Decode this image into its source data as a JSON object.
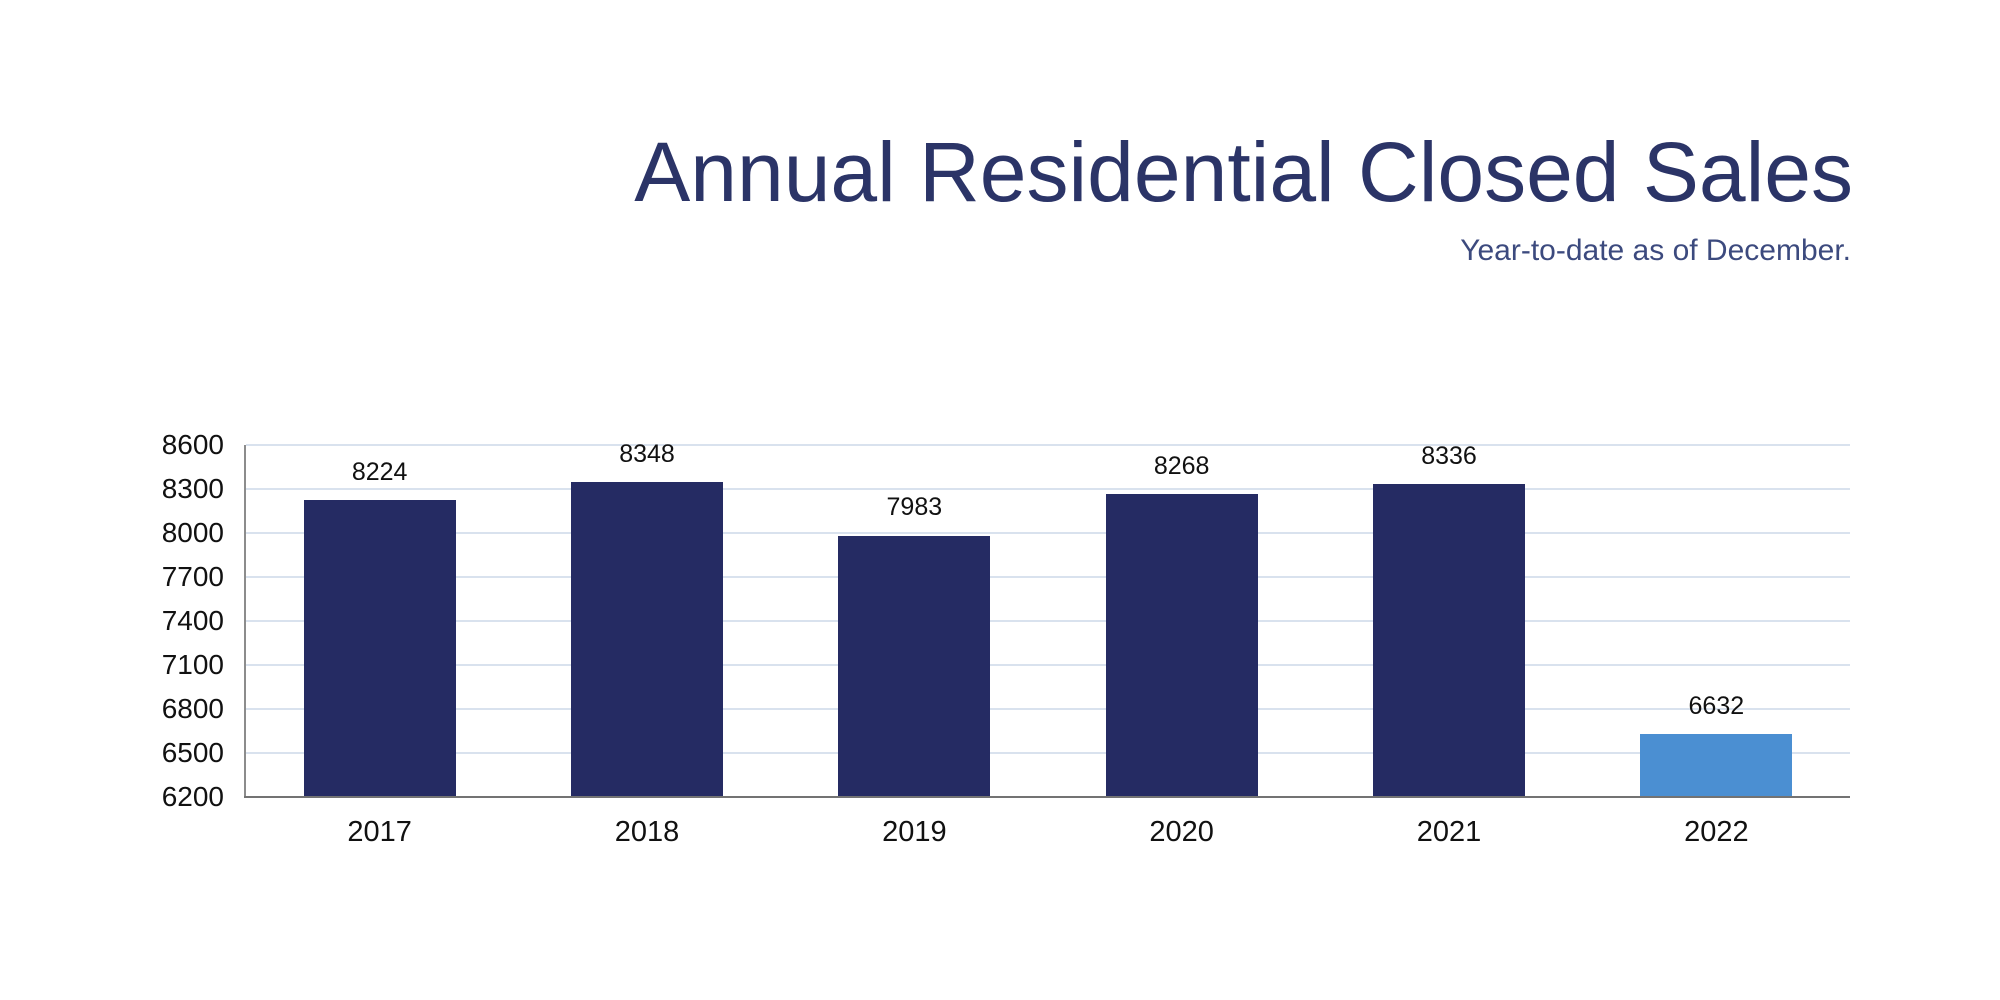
{
  "chart_data": {
    "type": "bar",
    "title": "Annual Residential Closed Sales",
    "subtitle": "Year-to-date as of December.",
    "categories": [
      "2017",
      "2018",
      "2019",
      "2020",
      "2021",
      "2022"
    ],
    "values": [
      8224,
      8348,
      7983,
      8268,
      8336,
      6632
    ],
    "data_labels": [
      "8224",
      "8348",
      "7983",
      "8268",
      "8336",
      "6632"
    ],
    "ylim": [
      6200,
      8600
    ],
    "ytick_step": 300,
    "ytick_labels": [
      "8600",
      "8300",
      "8000",
      "7700",
      "7400",
      "7100",
      "6800",
      "6500",
      "6200"
    ],
    "xlabel": "",
    "ylabel": "",
    "grid": true,
    "legend": "none",
    "highlight_index": 5
  },
  "colors": {
    "title": "#2b3467",
    "subtitle": "#3c4a7e",
    "bar_default": "#252b63",
    "bar_highlight": "#4b8fd2",
    "gridline": "#d9e2ee",
    "y_axis_line": "#8c8c8c",
    "x_axis_line": "#737373",
    "tick_label": "#111111"
  }
}
